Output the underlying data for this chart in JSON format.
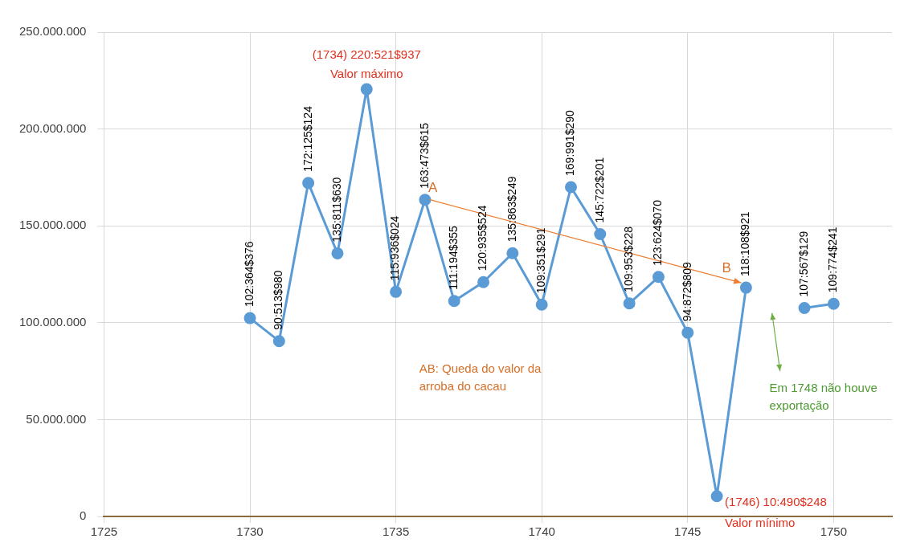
{
  "chart_data": {
    "type": "line",
    "x": [
      1730,
      1731,
      1732,
      1733,
      1734,
      1735,
      1736,
      1737,
      1738,
      1739,
      1740,
      1741,
      1742,
      1743,
      1744,
      1745,
      1746,
      1747,
      1748,
      1749,
      1750
    ],
    "values": [
      102364376,
      90513980,
      172125124,
      135811630,
      220521937,
      115936024,
      163473615,
      111194355,
      120935524,
      135863249,
      109351291,
      169991290,
      145722201,
      109953228,
      123624070,
      94872809,
      10490248,
      118108921,
      null,
      107567129,
      109774241
    ],
    "value_labels": [
      "102:364$376",
      "90:513$980",
      "172:125$124",
      "135:811$630",
      null,
      "115:936$024",
      "163:473$615",
      "111:194$355",
      "120:935$524",
      "135:863$249",
      "109:351$291",
      "169:991$290",
      "145:722$201",
      "109:953$228",
      "123:624$070",
      "94:872$809",
      null,
      "118:108$921",
      null,
      "107:567$129",
      "109:774$241"
    ],
    "color": "#5b9bd5",
    "marker": "circle",
    "line_style": "solid",
    "grid": true,
    "legend": false,
    "xlim": [
      1725,
      1752
    ],
    "xticks": [
      1725,
      1730,
      1735,
      1740,
      1745,
      1750
    ],
    "ylim": [
      0,
      250000000
    ],
    "yticks": [
      {
        "value": 0,
        "label": "0"
      },
      {
        "value": 50000000,
        "label": "50.000.000"
      },
      {
        "value": 100000000,
        "label": "100.000.000"
      },
      {
        "value": 150000000,
        "label": "150.000.000"
      },
      {
        "value": 200000000,
        "label": "200.000.000"
      },
      {
        "value": 250000000,
        "label": "250.000.000"
      }
    ],
    "annotations": [
      {
        "text": "(1734) 220:521$937",
        "x": 1734,
        "y": 220521937
      },
      {
        "text": "Valor máximo",
        "x": 1734,
        "y": 220521937
      },
      {
        "text": "(1746) 10:490$248",
        "x": 1746,
        "y": 10490248
      },
      {
        "text": "Valor mínimo",
        "x": 1746,
        "y": 10490248
      },
      {
        "text": "A",
        "x": 1736,
        "y": 163473615
      },
      {
        "text": "B",
        "x": 1747,
        "y": 118108921
      },
      "AB: Queda do valor da arroba do cacau",
      "Em 1748 não houve exportação"
    ]
  }
}
